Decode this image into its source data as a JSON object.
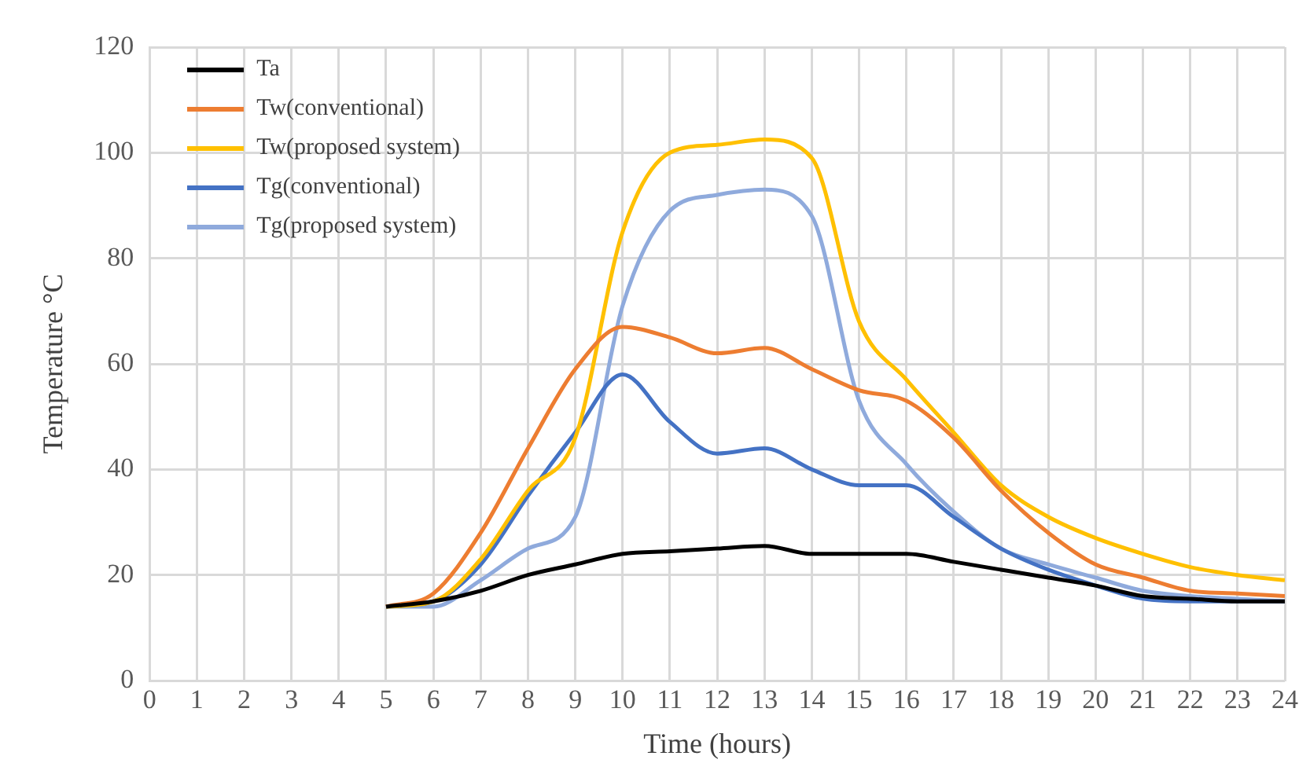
{
  "chart_data": {
    "type": "line",
    "xlabel": "Time (hours)",
    "ylabel": "Temperature °C",
    "x": [
      5,
      6,
      7,
      8,
      9,
      10,
      11,
      12,
      13,
      14,
      15,
      16,
      17,
      18,
      19,
      20,
      21,
      22,
      23,
      24
    ],
    "series": [
      {
        "name": "Ta",
        "color": "#000000",
        "values": [
          14,
          15,
          17,
          20,
          22,
          24,
          24.5,
          25,
          25.5,
          24,
          24,
          24,
          22.5,
          21,
          19.5,
          18,
          16,
          15.5,
          15,
          15
        ]
      },
      {
        "name": "Tw(conventional)",
        "color": "#ed7d31",
        "values": [
          14,
          16.5,
          28,
          44,
          59,
          67,
          65,
          62,
          63,
          59,
          55,
          53,
          46,
          36,
          28,
          22,
          19.5,
          17,
          16.5,
          16
        ]
      },
      {
        "name": "Tw(proposed system)",
        "color": "#ffc000",
        "values": [
          14,
          15,
          23,
          36,
          46,
          85,
          100,
          101.5,
          102.5,
          99,
          68,
          57,
          47,
          37,
          31,
          27,
          24,
          21.5,
          20,
          19
        ]
      },
      {
        "name": "Tg(conventional)",
        "color": "#4472c4",
        "values": [
          14,
          15,
          22,
          35,
          47,
          58,
          49,
          43,
          44,
          40,
          37,
          37,
          31,
          25,
          21,
          18,
          15.5,
          15,
          15,
          15
        ]
      },
      {
        "name": "Tg(proposed system)",
        "color": "#8faadc",
        "values": [
          14,
          14,
          19,
          25,
          31,
          71,
          89,
          92,
          93,
          88,
          53,
          41,
          32,
          25,
          22,
          19.5,
          17,
          16,
          15.5,
          15
        ]
      }
    ],
    "xlim": [
      0,
      24
    ],
    "xticks": [
      0,
      1,
      2,
      3,
      4,
      5,
      6,
      7,
      8,
      9,
      10,
      11,
      12,
      13,
      14,
      15,
      16,
      17,
      18,
      19,
      20,
      21,
      22,
      23,
      24
    ],
    "ylim": [
      0,
      120
    ],
    "yticks": [
      0,
      20,
      40,
      60,
      80,
      100,
      120
    ],
    "grid": true,
    "legend": "top left",
    "marker": "none",
    "line_style": "solid"
  }
}
